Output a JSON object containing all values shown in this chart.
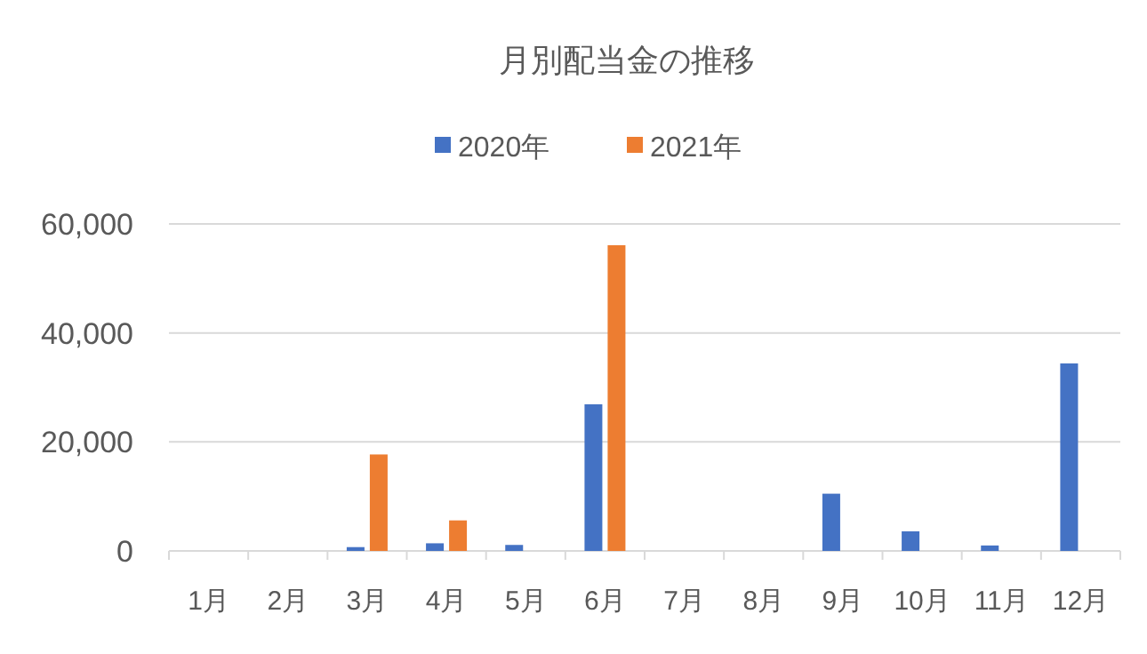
{
  "chart_data": {
    "type": "bar",
    "title": "月別配当金の推移",
    "categories": [
      "1月",
      "2月",
      "3月",
      "4月",
      "5月",
      "6月",
      "7月",
      "8月",
      "9月",
      "10月",
      "11月",
      "12月"
    ],
    "series": [
      {
        "name": "2020年",
        "color": "#4472c4",
        "values": [
          null,
          null,
          700,
          1400,
          1100,
          26900,
          null,
          null,
          10500,
          3600,
          1000,
          34400
        ]
      },
      {
        "name": "2021年",
        "color": "#ed7d31",
        "values": [
          null,
          null,
          17700,
          5600,
          null,
          56100,
          null,
          null,
          null,
          null,
          null,
          null
        ]
      }
    ],
    "ylim": [
      0,
      60000
    ],
    "yticks": [
      {
        "value": 0,
        "label": "0"
      },
      {
        "value": 20000,
        "label": "20,000"
      },
      {
        "value": 40000,
        "label": "40,000"
      },
      {
        "value": 60000,
        "label": "60,000"
      }
    ],
    "grid": "y",
    "legend": "top"
  }
}
